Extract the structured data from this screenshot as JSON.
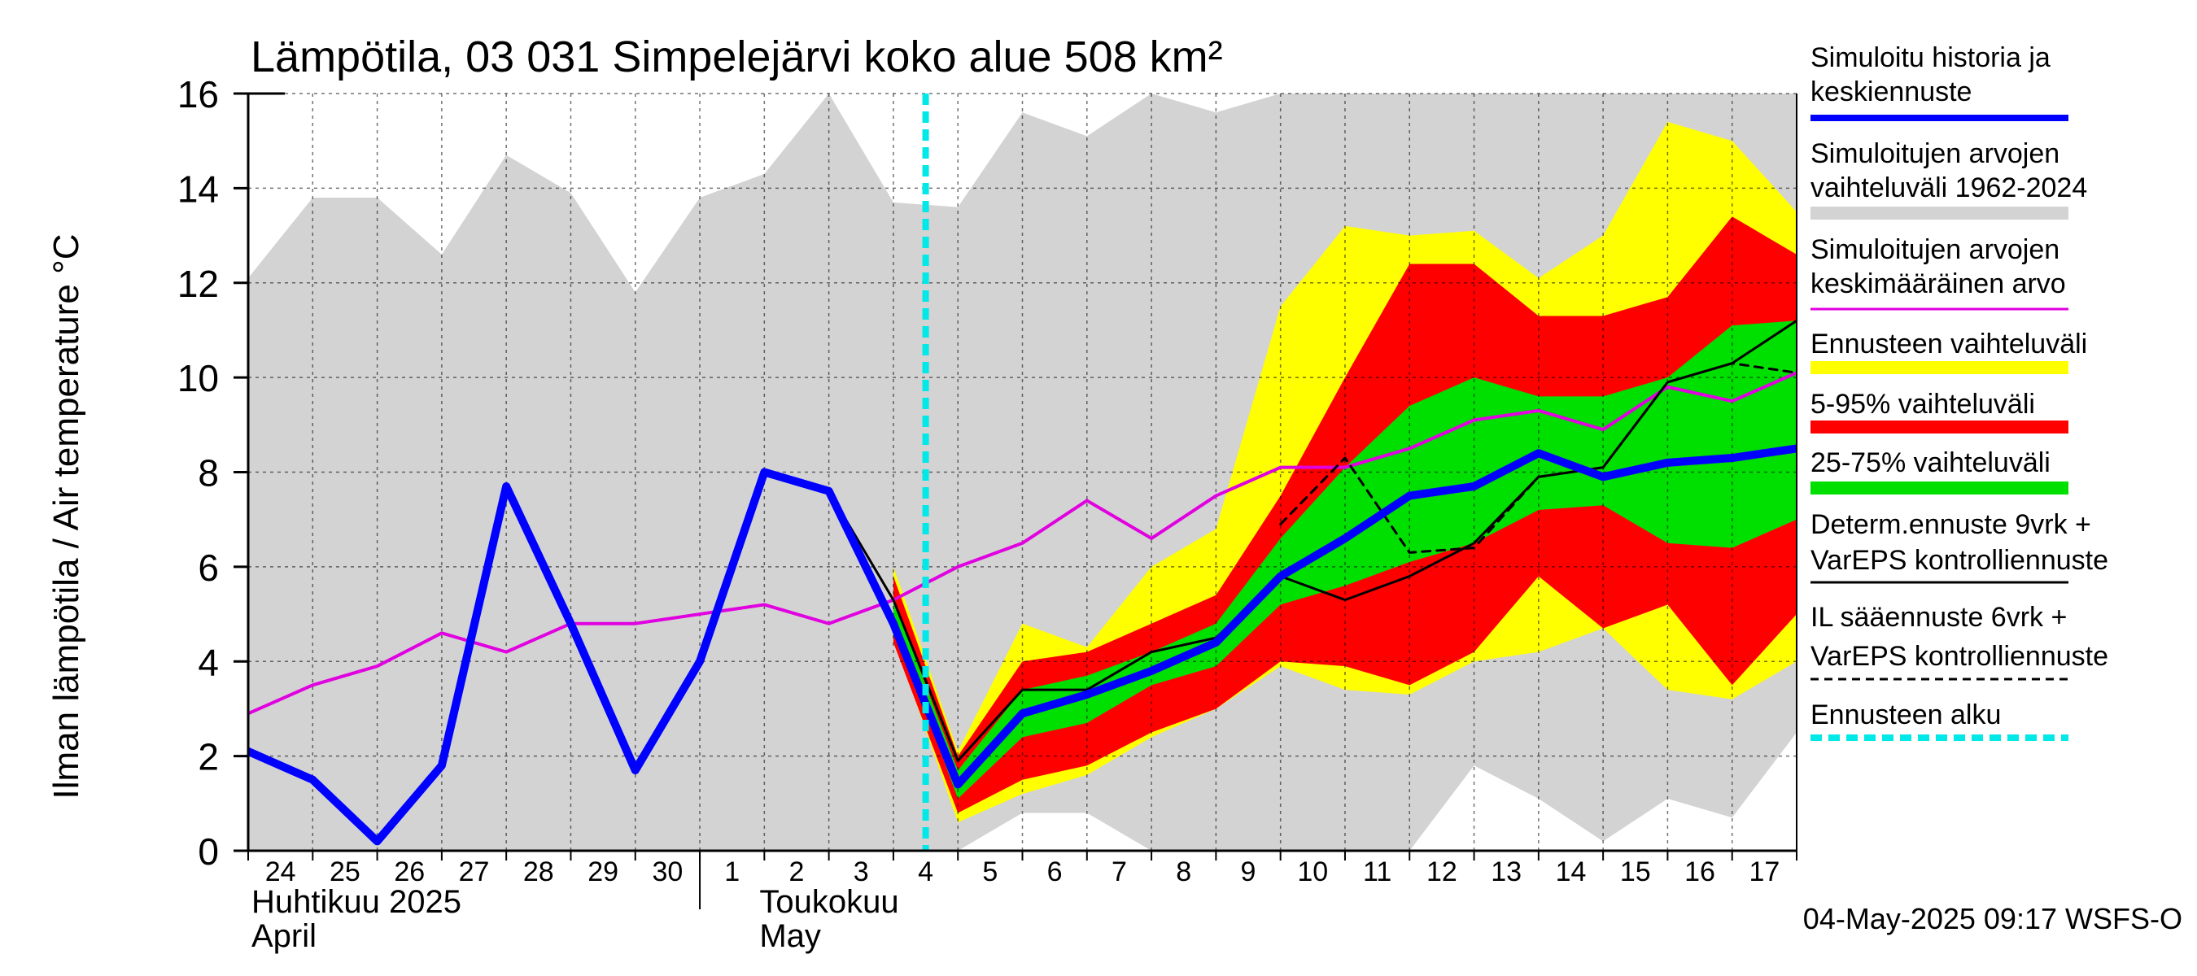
{
  "chart_data": {
    "type": "line",
    "title": "Lämpötila, 03 031 Simpelejärvi koko alue 508 km²",
    "ylabel": "Ilman lämpötila / Air temperature   °C",
    "ylim": [
      0,
      16
    ],
    "yticks": [
      0,
      2,
      4,
      6,
      8,
      10,
      12,
      14,
      16
    ],
    "x_range": [
      "2025-04-24",
      "2025-05-18"
    ],
    "day_labels": [
      "24",
      "25",
      "26",
      "27",
      "28",
      "29",
      "30",
      "1",
      "2",
      "3",
      "4",
      "5",
      "6",
      "7",
      "8",
      "9",
      "10",
      "11",
      "12",
      "13",
      "14",
      "15",
      "16",
      "17"
    ],
    "month_labels": [
      {
        "fi": "Huhtikuu  2025",
        "en": "April"
      },
      {
        "fi": "Toukokuu",
        "en": "May"
      }
    ],
    "grid": true,
    "legend_placement": "right",
    "forecast_start": 10.5,
    "hist_range": {
      "x": [
        0,
        1,
        2,
        3,
        4,
        5,
        6,
        7,
        8,
        9,
        10,
        11,
        12,
        13,
        14,
        15,
        16,
        17,
        18,
        19,
        20,
        21,
        22,
        23,
        24
      ],
      "low": [
        0,
        0,
        0,
        0,
        0,
        0,
        0,
        0,
        0,
        0,
        0,
        0,
        0.8,
        0.8,
        -0.4,
        -0.4,
        -0.2,
        -0.4,
        -0.3,
        1.8,
        1.1,
        0.2,
        1.1,
        0.7,
        2.5
      ],
      "high": [
        12.1,
        13.8,
        13.8,
        12.6,
        14.7,
        13.9,
        11.8,
        13.8,
        14.3,
        16.2,
        13.7,
        13.6,
        15.6,
        15.1,
        16.0,
        15.6,
        16.3,
        16.4,
        16.2,
        16.4,
        16.3,
        16.2,
        16.1,
        16.4,
        16.4
      ]
    },
    "ensemble_range": {
      "x": [
        10,
        11,
        12,
        13,
        14,
        15,
        16,
        17,
        18,
        19,
        20,
        21,
        22,
        23,
        24
      ],
      "low": [
        4.5,
        0.6,
        1.2,
        1.6,
        2.4,
        3.0,
        3.9,
        3.4,
        3.3,
        4.0,
        4.2,
        4.7,
        3.4,
        3.2,
        4.0
      ],
      "high": [
        6.0,
        2.1,
        4.8,
        4.3,
        6.0,
        6.8,
        11.5,
        13.2,
        13.0,
        13.1,
        12.1,
        13.0,
        15.4,
        15.0,
        13.5
      ]
    },
    "range_5_95": {
      "x": [
        10,
        11,
        12,
        13,
        14,
        15,
        16,
        17,
        18,
        19,
        20,
        21,
        22,
        23,
        24
      ],
      "low": [
        4.4,
        0.8,
        1.5,
        1.8,
        2.5,
        3.0,
        4.0,
        3.9,
        3.5,
        4.2,
        5.8,
        4.7,
        5.2,
        3.5,
        5.0
      ],
      "high": [
        5.8,
        2.0,
        4.0,
        4.2,
        4.8,
        5.4,
        7.5,
        10.0,
        12.4,
        12.4,
        11.3,
        11.3,
        11.7,
        13.4,
        12.6
      ]
    },
    "range_25_75": {
      "x": [
        10,
        11,
        12,
        13,
        14,
        15,
        16,
        17,
        18,
        19,
        20,
        21,
        22,
        23,
        24
      ],
      "low": [
        4.8,
        1.1,
        2.4,
        2.7,
        3.5,
        3.9,
        5.2,
        5.6,
        6.1,
        6.5,
        7.2,
        7.3,
        6.5,
        6.4,
        7.0
      ],
      "high": [
        5.3,
        1.7,
        3.4,
        3.7,
        4.2,
        4.8,
        6.6,
        8.1,
        9.4,
        10.0,
        9.6,
        9.6,
        10.0,
        11.1,
        11.2
      ]
    },
    "series": [
      {
        "name": "Simuloitujen arvojen keskimääräinen arvo",
        "color": "#e000e0",
        "x": [
          0,
          1,
          2,
          3,
          4,
          5,
          6,
          7,
          8,
          9,
          10,
          11,
          12,
          13,
          14,
          15,
          16,
          17,
          18,
          19,
          20,
          21,
          22,
          23,
          24
        ],
        "y": [
          2.9,
          3.5,
          3.9,
          4.6,
          4.2,
          4.8,
          4.8,
          5.0,
          5.2,
          4.8,
          5.3,
          6.0,
          6.5,
          7.4,
          6.6,
          7.5,
          8.1,
          8.1,
          8.5,
          9.1,
          9.3,
          8.9,
          9.8,
          9.5,
          10.1
        ]
      },
      {
        "name": "Determ.ennuste 9vrk + VarEPS kontrolliennuste",
        "color": "#000000",
        "x": [
          8,
          9,
          10,
          11,
          12,
          13,
          14,
          15,
          16,
          17,
          18,
          19,
          20,
          21,
          22,
          23,
          24
        ],
        "y": [
          8.0,
          7.6,
          5.3,
          1.9,
          3.4,
          3.4,
          4.2,
          4.5,
          5.8,
          5.3,
          5.8,
          6.5,
          7.9,
          8.1,
          9.9,
          10.3,
          11.2
        ]
      },
      {
        "name": "IL sääennuste 6vrk + VarEPS kontrolliennuste",
        "color": "#000000",
        "dashed": true,
        "x": [
          16,
          17,
          18,
          19,
          20,
          21,
          22,
          23,
          24
        ],
        "y": [
          6.9,
          8.3,
          6.3,
          6.4,
          7.9,
          8.1,
          9.9,
          10.3,
          10.1
        ]
      },
      {
        "name": "Simuloitu historia ja keskiennuste",
        "color": "#0000ff",
        "x": [
          0,
          1,
          2,
          3,
          4,
          5,
          6,
          7,
          8,
          9,
          10,
          11,
          12,
          13,
          14,
          15,
          16,
          17,
          18,
          19,
          20,
          21,
          22,
          23,
          24
        ],
        "y": [
          2.1,
          1.5,
          0.2,
          1.8,
          7.7,
          4.8,
          1.7,
          4.0,
          8.0,
          7.6,
          4.8,
          1.4,
          2.9,
          3.3,
          3.8,
          4.4,
          5.8,
          6.6,
          7.5,
          7.7,
          8.4,
          7.9,
          8.2,
          8.3,
          8.5
        ]
      }
    ]
  },
  "legend": [
    {
      "label": "Simuloitu historia ja keskiennuste",
      "color": "#0000ff",
      "style": "line"
    },
    {
      "label": "Simuloitujen arvojen vaihteluväli 1962-2024",
      "color": "#d3d3d3",
      "style": "band"
    },
    {
      "label": "Simuloitujen arvojen keskimääräinen arvo",
      "color": "#e000e0",
      "style": "thin"
    },
    {
      "label": "Ennusteen vaihteluväli",
      "color": "#ffff00",
      "style": "band"
    },
    {
      "label": "5-95% vaihteluväli",
      "color": "#ff0000",
      "style": "band"
    },
    {
      "label": "25-75% vaihteluväli",
      "color": "#00e000",
      "style": "band"
    },
    {
      "label": "Determ.ennuste 9vrk + VarEPS kontrolliennuste",
      "color": "#000000",
      "style": "thin"
    },
    {
      "label": "IL sääennuste 6vrk  + VarEPS kontrolliennuste",
      "color": "#000000",
      "style": "dashed"
    },
    {
      "label": "Ennusteen alku",
      "color": "#00e8e8",
      "style": "dashed-thick"
    }
  ],
  "footer": "04-May-2025 09:17 WSFS-O"
}
